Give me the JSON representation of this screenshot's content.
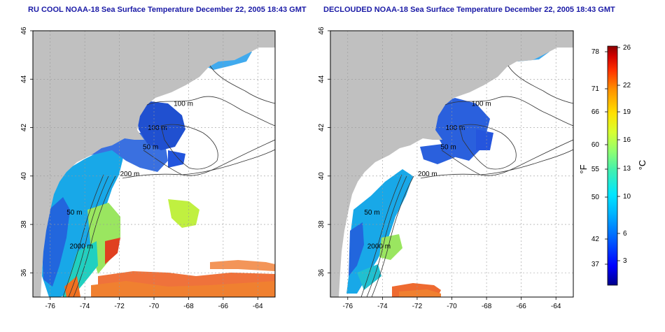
{
  "titles": {
    "left": "RU COOL NOAA-18 Sea Surface Temperature December 22, 2005 18:43 GMT",
    "right": "DECLOUDED NOAA-18 Sea Surface Temperature December 22, 2005 18:43 GMT"
  },
  "axes": {
    "lon_ticks": [
      -76,
      -74,
      -72,
      -70,
      -68,
      -66,
      -64
    ],
    "lat_ticks": [
      36,
      38,
      40,
      42,
      44,
      46
    ],
    "lon_range": [
      -77.0,
      -63.0
    ],
    "lat_range": [
      35.0,
      46.0
    ],
    "grid": true
  },
  "contour_labels": [
    {
      "text": "100 m",
      "lon": -68.3,
      "lat": 42.9
    },
    {
      "text": "100 m",
      "lon": -69.8,
      "lat": 41.9
    },
    {
      "text": "50 m",
      "lon": -70.2,
      "lat": 41.1
    },
    {
      "text": "200 m",
      "lon": -71.4,
      "lat": 40.0
    },
    {
      "text": "50 m",
      "lon": -74.6,
      "lat": 38.4
    },
    {
      "text": "2000 m",
      "lon": -74.2,
      "lat": 37.0
    }
  ],
  "colorbar": {
    "fahrenheit_ticks": [
      "78",
      "71",
      "66",
      "60",
      "55",
      "50",
      "42",
      "37"
    ],
    "celsius_ticks": [
      "26",
      "22",
      "19",
      "16",
      "13",
      "10",
      "6",
      "3"
    ],
    "fahrenheit_label": "°F",
    "celsius_label": "°C",
    "colors": [
      "#00008b",
      "#0000ff",
      "#0055ff",
      "#00aaff",
      "#00e0ff",
      "#30f0c0",
      "#80ff80",
      "#d0ff30",
      "#ffe000",
      "#ff9900",
      "#ff4000",
      "#e00000",
      "#8b0000"
    ]
  },
  "colors": {
    "land": "#c0c0c0",
    "title": "#1a1aa6",
    "sst_cold": "#2255dd",
    "sst_cool": "#22aaee",
    "sst_mid": "#88ee66",
    "sst_warm": "#e0402a"
  }
}
